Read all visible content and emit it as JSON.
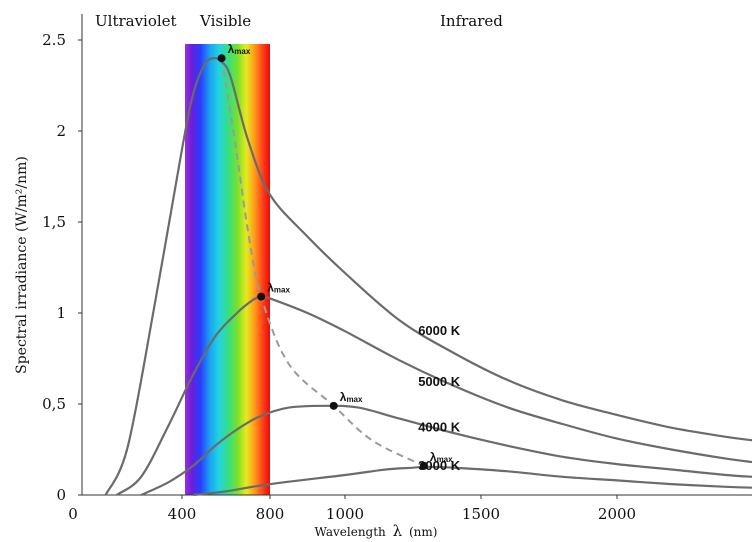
{
  "chart_data": {
    "type": "line",
    "title": "",
    "xlabel_prefix": "Wavelength",
    "xlabel_symbol": "λ",
    "xlabel_unit": "(nm)",
    "ylabel": "Spectral irradiance (W/m²/nm)",
    "xlim": [
      0,
      2500
    ],
    "ylim": [
      0,
      2.5
    ],
    "x_ticks": [
      {
        "value": 0,
        "label": "0"
      },
      {
        "value": 400,
        "label": "400"
      },
      {
        "value": 800,
        "label": "800"
      },
      {
        "value": 1000,
        "label": "1000"
      },
      {
        "value": 1500,
        "label": "1500"
      },
      {
        "value": 2000,
        "label": "2000"
      }
    ],
    "y_ticks": [
      {
        "value": 0,
        "label": "0"
      },
      {
        "value": 0.5,
        "label": "0,5"
      },
      {
        "value": 1,
        "label": "1"
      },
      {
        "value": 1.5,
        "label": "1,5"
      },
      {
        "value": 2,
        "label": "2"
      },
      {
        "value": 2.5,
        "label": "2.5"
      }
    ],
    "regions": [
      {
        "label": "Ultraviolet",
        "x": 80
      },
      {
        "label": "Visible",
        "x": 450
      },
      {
        "label": "Infrared",
        "x": 1500
      }
    ],
    "visible_band": [
      400,
      800
    ],
    "lambda_max_label": "λ",
    "lambda_max_sub": "max",
    "series": [
      {
        "name": "6000 K",
        "color": "#6b6b6b",
        "x": [
          120,
          200,
          300,
          400,
          450,
          500,
          540,
          580,
          620,
          700,
          800,
          900,
          1000,
          1200,
          1400,
          1600,
          1800,
          2000,
          2200,
          2400,
          2500
        ],
        "y": [
          0.0,
          0.26,
          1.05,
          1.9,
          2.2,
          2.36,
          2.4,
          2.38,
          2.3,
          1.95,
          1.65,
          1.42,
          1.22,
          0.96,
          0.78,
          0.63,
          0.52,
          0.44,
          0.37,
          0.32,
          0.3
        ],
        "peak": {
          "x": 580,
          "y": 2.4
        }
      },
      {
        "name": "5000 K",
        "color": "#6b6b6b",
        "x": [
          160,
          250,
          350,
          450,
          550,
          650,
          720,
          760,
          800,
          900,
          1000,
          1200,
          1400,
          1600,
          1800,
          2000,
          2200,
          2400,
          2500
        ],
        "y": [
          0.0,
          0.1,
          0.38,
          0.66,
          0.87,
          1.0,
          1.07,
          1.09,
          1.08,
          1.0,
          0.9,
          0.74,
          0.6,
          0.48,
          0.39,
          0.31,
          0.25,
          0.2,
          0.18
        ],
        "peak": {
          "x": 760,
          "y": 1.09
        }
      },
      {
        "name": "4000 K",
        "color": "#6b6b6b",
        "x": [
          250,
          350,
          450,
          550,
          650,
          750,
          850,
          950,
          1050,
          1200,
          1400,
          1600,
          1800,
          2000,
          2200,
          2400,
          2500
        ],
        "y": [
          0.0,
          0.07,
          0.16,
          0.27,
          0.36,
          0.43,
          0.48,
          0.49,
          0.48,
          0.42,
          0.34,
          0.27,
          0.21,
          0.17,
          0.14,
          0.11,
          0.1
        ],
        "peak": {
          "x": 970,
          "y": 0.49
        }
      },
      {
        "name": "3000 K",
        "color": "#6b6b6b",
        "x": [
          450,
          600,
          800,
          1000,
          1150,
          1250,
          1300,
          1400,
          1600,
          1800,
          2000,
          2200,
          2400,
          2500
        ],
        "y": [
          0.0,
          0.02,
          0.06,
          0.11,
          0.14,
          0.15,
          0.155,
          0.15,
          0.13,
          0.1,
          0.08,
          0.06,
          0.045,
          0.04
        ],
        "peak": {
          "x": 1290,
          "y": 0.16
        }
      }
    ],
    "label_positions": {
      "6000 K": {
        "x": 1350,
        "y": 0.9
      },
      "5000 K": {
        "x": 1350,
        "y": 0.62
      },
      "4000 K": {
        "x": 1350,
        "y": 0.37
      },
      "3000 K": {
        "x": 1350,
        "y": 0.16
      }
    },
    "peak_locus": {
      "x": [
        580,
        640,
        700,
        760,
        850,
        970,
        1100,
        1290
      ],
      "y": [
        2.4,
        1.95,
        1.45,
        1.09,
        0.72,
        0.49,
        0.3,
        0.16
      ]
    }
  }
}
